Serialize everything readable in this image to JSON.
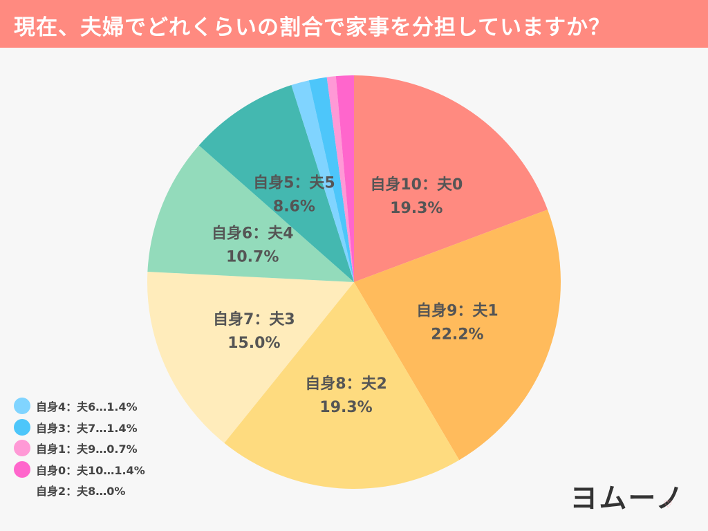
{
  "header": {
    "title": "現在、夫婦でどれくらいの割合で家事を分担していますか？"
  },
  "colors": {
    "header_bg": "#ff8a80",
    "label_text": "#555555"
  },
  "chart_data": {
    "type": "pie",
    "title": "現在、夫婦でどれくらいの割合で家事を分担していますか？",
    "unit": "%",
    "start": "12 o'clock",
    "direction": "clockwise",
    "slices": [
      {
        "label": "自身10：夫0",
        "value": 19.3,
        "value_label": "19.3%",
        "color": "#ff8a80"
      },
      {
        "label": "自身9：夫1",
        "value": 22.2,
        "value_label": "22.2%",
        "color": "#ffbb5c"
      },
      {
        "label": "自身8：夫2",
        "value": 19.3,
        "value_label": "19.3%",
        "color": "#fedb7f"
      },
      {
        "label": "自身7：夫3",
        "value": 15.0,
        "value_label": "15.0%",
        "color": "#ffecbb"
      },
      {
        "label": "自身6：夫4",
        "value": 10.7,
        "value_label": "10.7%",
        "color": "#93dbbb"
      },
      {
        "label": "自身5：夫5",
        "value": 8.6,
        "value_label": "8.6%",
        "color": "#44b8b0"
      },
      {
        "label": "自身4：夫6",
        "value": 1.4,
        "value_label": "1.4%",
        "color": "#80d4ff"
      },
      {
        "label": "自身3：夫7",
        "value": 1.4,
        "value_label": "1.4%",
        "color": "#4dc6fa"
      },
      {
        "label": "自身1：夫9",
        "value": 0.7,
        "value_label": "0.7%",
        "color": "#ff99d6"
      },
      {
        "label": "自身0：夫10",
        "value": 1.4,
        "value_label": "1.4%",
        "color": "#ff66cc"
      },
      {
        "label": "自身2：夫8",
        "value": 0,
        "value_label": "0%",
        "color": "none"
      }
    ],
    "inside_labels": [
      "自身10：夫0",
      "自身9：夫1",
      "自身8：夫2",
      "自身7：夫3",
      "自身6：夫4",
      "自身5：夫5"
    ],
    "legend": [
      {
        "text": "自身4：夫6…1.4%",
        "color": "#80d4ff"
      },
      {
        "text": "自身3：夫7…1.4%",
        "color": "#4dc6fa"
      },
      {
        "text": "自身1：夫9…0.7%",
        "color": "#ff99d6"
      },
      {
        "text": "自身0：夫10…1.4%",
        "color": "#ff66cc"
      },
      {
        "text": "自身2：夫8…0%",
        "color": "none"
      }
    ],
    "legend_position": "bottom-left"
  },
  "logo": {
    "text": "ヨムーノ",
    "heart_icon": "heart-icon"
  }
}
